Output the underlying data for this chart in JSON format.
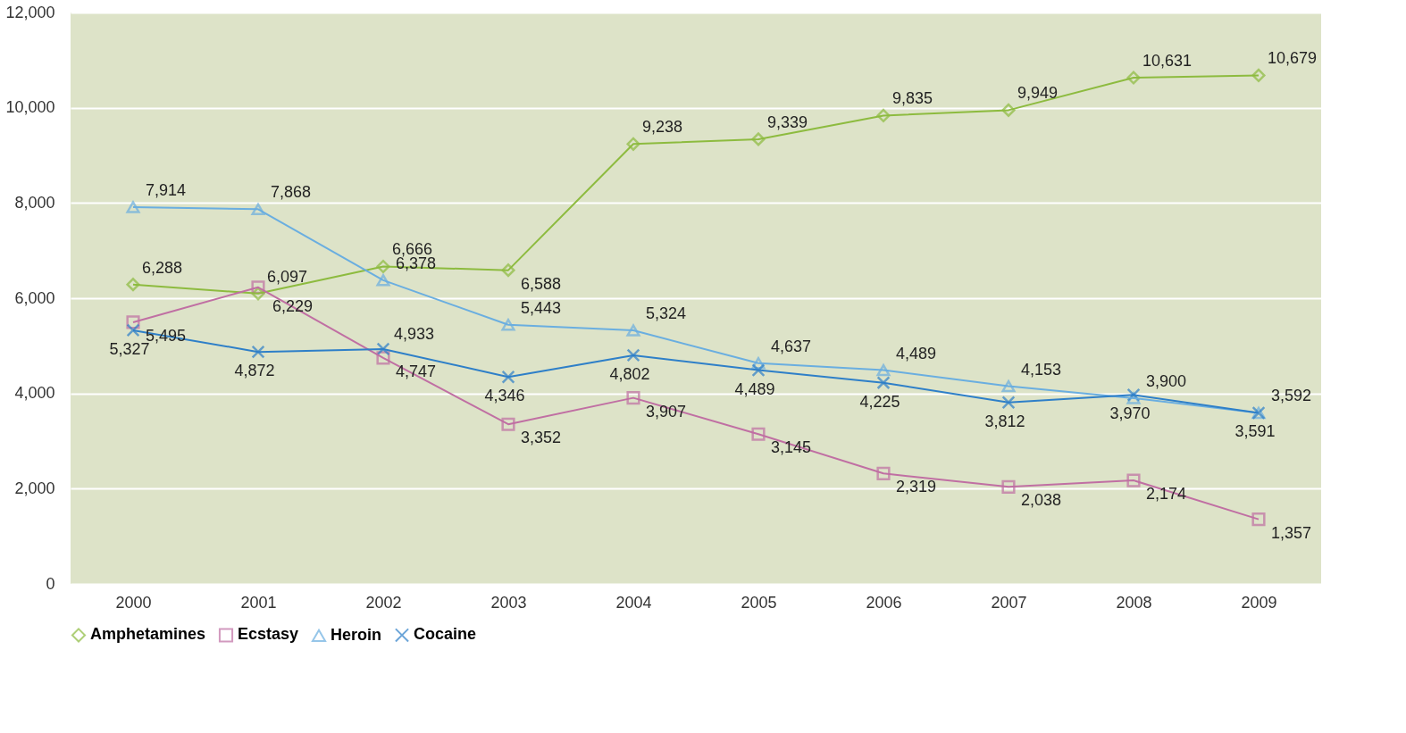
{
  "chart_data": {
    "type": "line",
    "categories": [
      "2000",
      "2001",
      "2002",
      "2003",
      "2004",
      "2005",
      "2006",
      "2007",
      "2008",
      "2009"
    ],
    "series": [
      {
        "name": "Amphetamines",
        "color": "#8dbb3f",
        "marker": "diamond",
        "values": [
          6288,
          6097,
          6666,
          6588,
          9238,
          9339,
          9835,
          9949,
          10631,
          10679
        ],
        "value_labels": [
          "6,288",
          "6,097",
          "6,666",
          "6,588",
          "9,238",
          "9,339",
          "9,835",
          "9,949",
          "10,631",
          "10,679"
        ]
      },
      {
        "name": "Ecstasy",
        "color": "#c06fa3",
        "marker": "square",
        "values": [
          5495,
          6229,
          4747,
          3352,
          3907,
          3145,
          2319,
          2038,
          2174,
          1357
        ],
        "value_labels": [
          "5,495",
          "6,229",
          "4,747",
          "3,352",
          "3,907",
          "3,145",
          "2,319",
          "2,038",
          "2,174",
          "1,357"
        ]
      },
      {
        "name": "Heroin",
        "color": "#6aaee0",
        "marker": "triangle",
        "values": [
          7914,
          7868,
          6378,
          5443,
          5324,
          4637,
          4489,
          4153,
          3900,
          3592
        ],
        "value_labels": [
          "7,914",
          "7,868",
          "6,378",
          "5,443",
          "5,324",
          "4,637",
          "4,489",
          "4,153",
          "3,900",
          "3,592"
        ]
      },
      {
        "name": "Cocaine",
        "color": "#2e7fc8",
        "marker": "cross",
        "values": [
          5327,
          4872,
          4933,
          4346,
          4802,
          4489,
          4225,
          3812,
          3970,
          3591
        ],
        "value_labels": [
          "5,327",
          "4,872",
          "4,933",
          "4,346",
          "4,802",
          "4,489",
          "4,225",
          "3,812",
          "3,970",
          "3,591"
        ]
      }
    ],
    "ylim": [
      0,
      12000
    ],
    "yticks": [
      0,
      {
        "value": 2000,
        "label": "2,000"
      },
      {
        "value": 4000,
        "label": "4,000"
      },
      {
        "value": 6000,
        "label": "6,000"
      },
      {
        "value": 8000,
        "label": "8,000"
      },
      {
        "value": 10000,
        "label": "10,000"
      },
      {
        "value": 12000,
        "label": "12,000"
      }
    ],
    "grid": "y",
    "legend": "bottom"
  }
}
